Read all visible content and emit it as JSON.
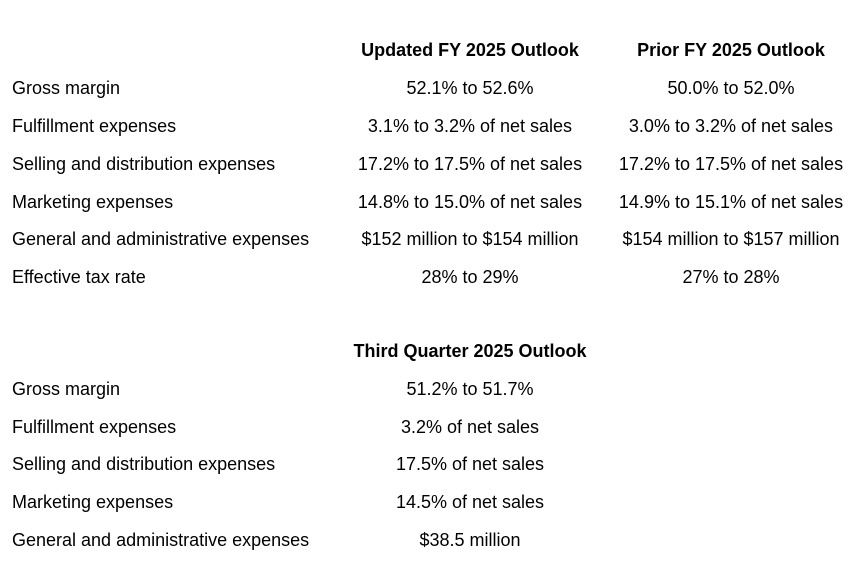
{
  "fy_table": {
    "headers": [
      "Updated FY 2025 Outlook",
      "Prior FY 2025 Outlook"
    ],
    "rows": [
      {
        "label": "Gross margin",
        "updated": "52.1% to 52.6%",
        "prior": "50.0% to 52.0%"
      },
      {
        "label": "Fulfillment expenses",
        "updated": "3.1% to 3.2% of net sales",
        "prior": "3.0% to 3.2% of net sales"
      },
      {
        "label": "Selling and distribution expenses",
        "updated": "17.2% to 17.5% of net sales",
        "prior": "17.2% to 17.5% of net sales"
      },
      {
        "label": "Marketing expenses",
        "updated": "14.8% to 15.0% of net sales",
        "prior": "14.9% to 15.1% of net sales"
      },
      {
        "label": "General and administrative expenses",
        "updated": "$152 million to $154 million",
        "prior": "$154 million to $157 million"
      },
      {
        "label": "Effective tax rate",
        "updated": "28% to 29%",
        "prior": "27% to 28%"
      }
    ]
  },
  "q3_table": {
    "header": "Third Quarter 2025 Outlook",
    "rows": [
      {
        "label": "Gross margin",
        "value": "51.2% to 51.7%"
      },
      {
        "label": "Fulfillment expenses",
        "value": "3.2% of net sales"
      },
      {
        "label": "Selling and distribution expenses",
        "value": "17.5% of net sales"
      },
      {
        "label": "Marketing expenses",
        "value": "14.5% of net sales"
      },
      {
        "label": "General and administrative expenses",
        "value": "$38.5 million"
      }
    ]
  }
}
